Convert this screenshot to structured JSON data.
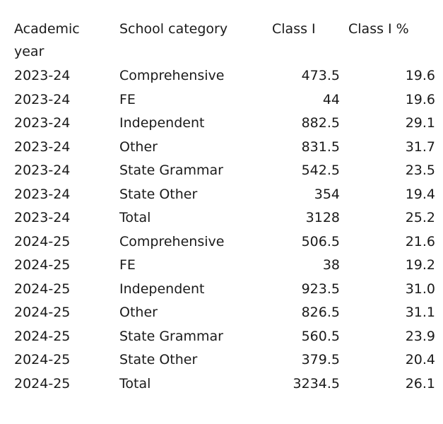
{
  "table": {
    "header": [
      "Academic year",
      "School category",
      "Class I",
      "Class I %"
    ],
    "rows": [
      [
        "2023-24",
        "Comprehensive",
        "473.5",
        "19.6"
      ],
      [
        "2023-24",
        "FE",
        "44",
        "19.6"
      ],
      [
        "2023-24",
        "Independent",
        "882.5",
        "29.1"
      ],
      [
        "2023-24",
        "Other",
        "831.5",
        "31.7"
      ],
      [
        "2023-24",
        "State Grammar",
        "542.5",
        "23.5"
      ],
      [
        "2023-24",
        "State Other",
        "354",
        "19.4"
      ],
      [
        "2023-24",
        "Total",
        "3128",
        "25.2"
      ],
      [
        "2024-25",
        "Comprehensive",
        "506.5",
        "21.6"
      ],
      [
        "2024-25",
        "FE",
        "38",
        "19.2"
      ],
      [
        "2024-25",
        "Independent",
        "923.5",
        "31.0"
      ],
      [
        "2024-25",
        "Other",
        "826.5",
        "31.1"
      ],
      [
        "2024-25",
        "State Grammar",
        "560.5",
        "23.9"
      ],
      [
        "2024-25",
        "State Other",
        "379.5",
        "20.4"
      ],
      [
        "2024-25",
        "Total",
        "3234.5",
        "26.1"
      ]
    ]
  }
}
